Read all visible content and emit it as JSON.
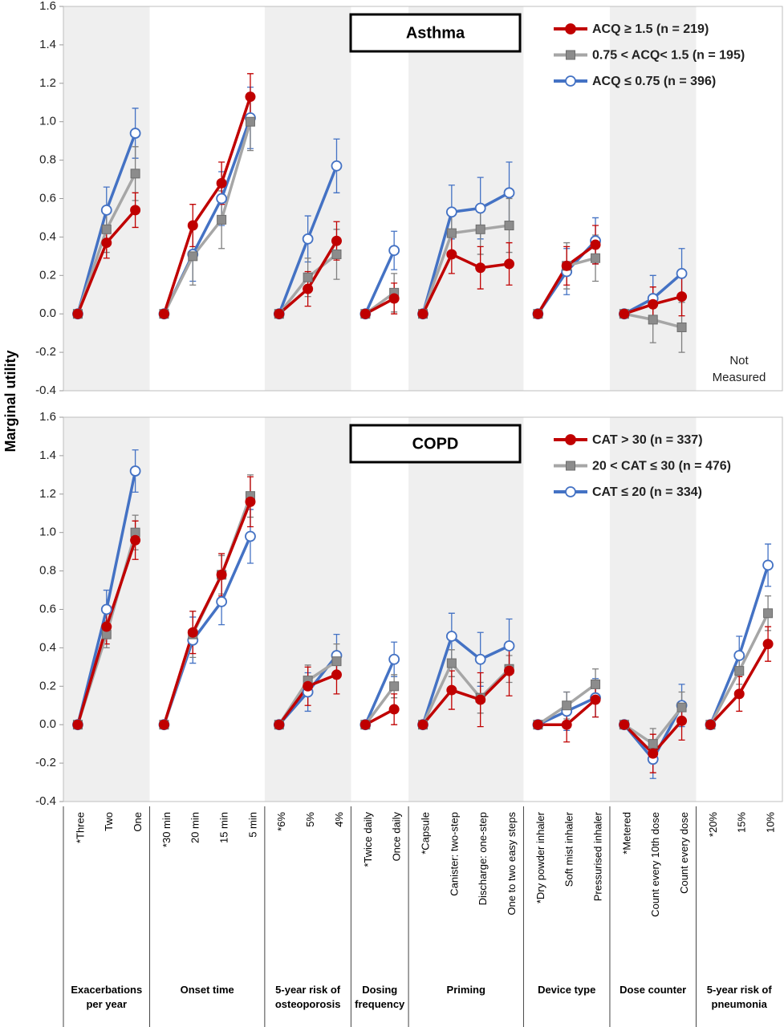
{
  "ylabel": "Marginal utility",
  "categories": [
    "*Three",
    "Two",
    "One",
    "*30 min",
    "20 min",
    "15 min",
    "5 min",
    "*6%",
    "5%",
    "4%",
    "*Twice daily",
    "Once daily",
    "*Capsule",
    "Canister: two-step",
    "Discharge: one-step",
    "One to two easy steps",
    "*Dry powder inhaler",
    "Soft mist inhaler",
    "Pressurised inhaler",
    "*Metered",
    "Count every 10th dose",
    "Count every dose",
    "*20%",
    "15%",
    "10%"
  ],
  "groups": [
    {
      "label": "Exacerbations per year",
      "size": 3
    },
    {
      "label": "Onset time",
      "size": 4
    },
    {
      "label": "5-year risk of osteoporosis",
      "size": 3
    },
    {
      "label": "Dosing frequency",
      "size": 2
    },
    {
      "label": "Priming",
      "size": 4
    },
    {
      "label": "Device type",
      "size": 3
    },
    {
      "label": "Dose counter",
      "size": 3
    },
    {
      "label": "5-year risk of pneumonia",
      "size": 3
    }
  ],
  "chart_data": [
    {
      "type": "line",
      "title": "Asthma",
      "legend": "upper right",
      "annotation": "Not Measured",
      "ylim": [
        -0.4,
        1.6
      ],
      "yticks": [
        -0.4,
        -0.2,
        {
          "value": 0,
          "label": "0.0"
        },
        0.2,
        0.4,
        0.6,
        0.8,
        {
          "value": 1,
          "label": "1.0"
        },
        1.2,
        1.4,
        1.6
      ],
      "series": [
        {
          "name": "ACQ ≥ 1.5 (n = 219)",
          "color": "#c00000",
          "marker": "circle",
          "values": [
            0,
            0.37,
            0.54,
            0,
            0.46,
            0.68,
            1.13,
            0,
            0.13,
            0.38,
            0,
            0.08,
            0,
            0.31,
            0.24,
            0.26,
            0,
            0.25,
            0.36,
            0,
            0.05,
            0.09,
            null,
            null,
            null
          ],
          "errors": [
            0,
            0.08,
            0.09,
            0,
            0.11,
            0.11,
            0.12,
            0,
            0.09,
            0.1,
            0,
            0.08,
            0,
            0.1,
            0.11,
            0.11,
            0,
            0.1,
            0.1,
            0,
            0.09,
            0.1,
            null,
            null,
            null
          ]
        },
        {
          "name": "0.75 < ACQ< 1.5 (n = 195)",
          "color": "#a6a6a6",
          "marker": "square",
          "values": [
            0,
            0.44,
            0.73,
            0,
            0.3,
            0.49,
            1.0,
            0,
            0.19,
            0.31,
            0,
            0.11,
            0,
            0.42,
            0.44,
            0.46,
            0,
            0.25,
            0.29,
            0,
            -0.03,
            -0.07,
            null,
            null,
            null
          ],
          "errors": [
            0,
            0.12,
            0.14,
            0,
            0.15,
            0.15,
            0.15,
            0,
            0.1,
            0.13,
            0,
            0.1,
            0,
            0.13,
            0.13,
            0.14,
            0,
            0.12,
            0.12,
            0,
            0.12,
            0.13,
            null,
            null,
            null
          ]
        },
        {
          "name": "ACQ ≤ 0.75 (n = 396)",
          "color": "#4472c4",
          "marker": "open-circle",
          "values": [
            0,
            0.54,
            0.94,
            0,
            0.31,
            0.6,
            1.02,
            0,
            0.39,
            0.77,
            0,
            0.33,
            0,
            0.53,
            0.55,
            0.63,
            0,
            0.22,
            0.38,
            0,
            0.08,
            0.21,
            null,
            null,
            null
          ],
          "errors": [
            0,
            0.12,
            0.13,
            0,
            0.14,
            0.14,
            0.16,
            0,
            0.12,
            0.14,
            0,
            0.1,
            0,
            0.14,
            0.16,
            0.16,
            0,
            0.12,
            0.12,
            0,
            0.12,
            0.13,
            null,
            null,
            null
          ]
        }
      ]
    },
    {
      "type": "line",
      "title": "COPD",
      "legend": "upper right",
      "ylim": [
        -0.4,
        1.6
      ],
      "yticks": [
        -0.4,
        -0.2,
        {
          "value": 0,
          "label": "0.0"
        },
        0.2,
        0.4,
        0.6,
        0.8,
        {
          "value": 1,
          "label": "1.0"
        },
        1.2,
        1.4,
        1.6
      ],
      "series": [
        {
          "name": "CAT > 30 (n = 337)",
          "color": "#c00000",
          "marker": "circle",
          "values": [
            0,
            0.51,
            0.96,
            0,
            0.48,
            0.78,
            1.16,
            0,
            0.2,
            0.26,
            0,
            0.08,
            0,
            0.18,
            0.13,
            0.28,
            0,
            0.0,
            0.13,
            0,
            -0.15,
            0.02,
            0,
            0.16,
            0.42
          ],
          "errors": [
            0,
            0.09,
            0.1,
            0,
            0.11,
            0.11,
            0.13,
            0,
            0.1,
            0.1,
            0,
            0.08,
            0,
            0.1,
            0.14,
            0.13,
            0,
            0.09,
            0.09,
            0,
            0.1,
            0.1,
            0,
            0.09,
            0.09
          ]
        },
        {
          "name": "20 < CAT ≤ 30 (n = 476)",
          "color": "#a6a6a6",
          "marker": "square",
          "values": [
            0,
            0.47,
            1.0,
            0,
            0.47,
            0.78,
            1.19,
            0,
            0.23,
            0.33,
            0,
            0.2,
            0,
            0.32,
            0.14,
            0.29,
            0,
            0.1,
            0.21,
            0,
            -0.1,
            0.09,
            0,
            0.28,
            0.58
          ],
          "errors": [
            0,
            0.07,
            0.09,
            0,
            0.12,
            0.1,
            0.11,
            0,
            0.08,
            0.09,
            0,
            0.06,
            0,
            0.07,
            0.08,
            0.07,
            0,
            0.07,
            0.08,
            0,
            0.08,
            0.08,
            0,
            0.07,
            0.09
          ]
        },
        {
          "name": "CAT ≤ 20 (n = 334)",
          "color": "#4472c4",
          "marker": "open-circle",
          "values": [
            0,
            0.6,
            1.32,
            0,
            0.44,
            0.64,
            0.98,
            0,
            0.17,
            0.36,
            0,
            0.34,
            0,
            0.46,
            0.34,
            0.41,
            0,
            0.07,
            0.14,
            0,
            -0.18,
            0.1,
            0,
            0.36,
            0.83
          ],
          "errors": [
            0,
            0.1,
            0.11,
            0,
            0.12,
            0.12,
            0.14,
            0,
            0.1,
            0.11,
            0,
            0.09,
            0,
            0.12,
            0.14,
            0.14,
            0,
            0.1,
            0.1,
            0,
            0.1,
            0.11,
            0,
            0.1,
            0.11
          ]
        }
      ]
    }
  ]
}
